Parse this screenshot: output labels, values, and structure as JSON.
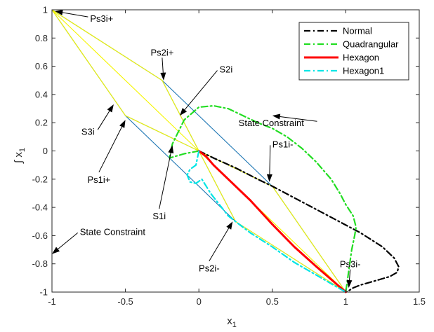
{
  "chart_data": {
    "type": "line",
    "title": "",
    "xlabel": "x",
    "xlabel_sub": "1",
    "ylabel": "∫ x",
    "ylabel_sub": "1",
    "xlim": [
      -1,
      1.5
    ],
    "ylim": [
      -1,
      1
    ],
    "xticks": [
      -1,
      -0.5,
      0,
      0.5,
      1,
      1.5
    ],
    "yticks": [
      -1,
      -0.8,
      -0.6,
      -0.4,
      -0.2,
      0,
      0.2,
      0.4,
      0.6,
      0.8,
      1
    ],
    "grid": false,
    "legend_position": "top-right",
    "colors": {
      "outer_hexagon": "#1f77b4",
      "inner_lines": "#f5f500",
      "normal": "#000000",
      "quadrangular": "#22dd22",
      "hexagon": "#ff0000",
      "hexagon1": "#00e5e5"
    },
    "series": [
      {
        "name": "Normal",
        "color": "#000000",
        "style": "dash-dot",
        "x": [
          0,
          0.1,
          0.25,
          0.4,
          0.5,
          0.7,
          0.9,
          1.1,
          1.25,
          1.33,
          1.36,
          1.35,
          1.3,
          1.2,
          1.1,
          1.05,
          1.02,
          1.0
        ],
        "y": [
          0,
          -0.05,
          -0.12,
          -0.2,
          -0.25,
          -0.36,
          -0.47,
          -0.58,
          -0.68,
          -0.76,
          -0.82,
          -0.86,
          -0.89,
          -0.92,
          -0.95,
          -0.97,
          -0.99,
          -1.0
        ]
      },
      {
        "name": "Quadrangular",
        "color": "#22dd22",
        "style": "dash-dot",
        "x": [
          0,
          -0.1,
          -0.2,
          -0.18,
          -0.1,
          0,
          0.1,
          0.2,
          0.3,
          0.4,
          0.5,
          0.6,
          0.7,
          0.8,
          0.9,
          0.96,
          1.0,
          1.05,
          1.07,
          1.06,
          1.04,
          1.02,
          1.0
        ],
        "y": [
          0,
          -0.02,
          -0.05,
          0.05,
          0.22,
          0.31,
          0.32,
          0.3,
          0.25,
          0.2,
          0.16,
          0.1,
          0.02,
          -0.08,
          -0.2,
          -0.3,
          -0.38,
          -0.46,
          -0.54,
          -0.6,
          -0.7,
          -0.85,
          -1.0
        ]
      },
      {
        "name": "Hexagon",
        "color": "#ff0000",
        "style": "solid",
        "x": [
          0,
          0.05,
          0.1,
          0.2,
          0.35,
          0.5,
          0.65,
          0.8,
          0.9,
          1.0
        ],
        "y": [
          0,
          -0.04,
          -0.1,
          -0.2,
          -0.35,
          -0.52,
          -0.68,
          -0.82,
          -0.91,
          -1.0
        ]
      },
      {
        "name": "Hexagon1",
        "color": "#00e5e5",
        "style": "dash-dot",
        "x": [
          0,
          -0.02,
          -0.06,
          -0.08,
          -0.06,
          -0.02,
          0.02,
          0.08,
          0.2,
          0.35,
          0.5,
          0.65,
          0.8,
          0.95,
          1.0
        ],
        "y": [
          0,
          -0.1,
          -0.13,
          -0.17,
          -0.22,
          -0.23,
          -0.2,
          -0.3,
          -0.46,
          -0.58,
          -0.68,
          -0.79,
          -0.88,
          -0.97,
          -1.0
        ]
      }
    ],
    "outer_polygon": {
      "x": [
        -1,
        -0.25,
        0.5,
        1,
        0.25,
        -0.5,
        -1
      ],
      "y": [
        1,
        0.5,
        -0.25,
        -1,
        -0.5,
        0.25,
        1
      ]
    },
    "inner_segments": [
      {
        "x": [
          -0.5,
          0.5
        ],
        "y": [
          0.25,
          -0.25
        ]
      },
      {
        "x": [
          -0.25,
          0.25
        ],
        "y": [
          0.5,
          -0.5
        ]
      }
    ],
    "yellow_lines": [
      {
        "x": [
          -1,
          0
        ],
        "y": [
          1,
          0
        ]
      },
      {
        "x": [
          -1,
          -0.25
        ],
        "y": [
          1,
          0.5
        ]
      },
      {
        "x": [
          -1,
          -0.5
        ],
        "y": [
          1,
          0.25
        ]
      },
      {
        "x": [
          -0.25,
          0
        ],
        "y": [
          0.5,
          0
        ]
      },
      {
        "x": [
          -0.5,
          0
        ],
        "y": [
          0.25,
          0
        ]
      },
      {
        "x": [
          0,
          1
        ],
        "y": [
          0,
          -1
        ]
      },
      {
        "x": [
          0.5,
          1
        ],
        "y": [
          -0.25,
          -1
        ]
      },
      {
        "x": [
          0.25,
          1
        ],
        "y": [
          -0.5,
          -1
        ]
      },
      {
        "x": [
          0,
          0.5
        ],
        "y": [
          0,
          -0.25
        ]
      },
      {
        "x": [
          0,
          0.25
        ],
        "y": [
          0,
          -0.5
        ]
      }
    ],
    "annotations": [
      {
        "text": "Ps3i+",
        "tx": -0.74,
        "ty": 0.94,
        "ax": -0.98,
        "ay": 0.99,
        "anchor": "start"
      },
      {
        "text": "Ps2i+",
        "tx": -0.25,
        "ty": 0.7,
        "ax": -0.24,
        "ay": 0.5,
        "anchor": "middle"
      },
      {
        "text": "S2i",
        "tx": 0.14,
        "ty": 0.58,
        "ax": -0.13,
        "ay": 0.25,
        "anchor": "start"
      },
      {
        "text": "State Constraint",
        "tx": 0.27,
        "ty": 0.2,
        "ax": 0.5,
        "ay": 0.25,
        "anchor": "start"
      },
      {
        "text": "S3i",
        "tx": -0.8,
        "ty": 0.14,
        "ax": -0.58,
        "ay": 0.33,
        "anchor": "start"
      },
      {
        "text": "Ps1i-",
        "tx": 0.5,
        "ty": 0.05,
        "ax": 0.48,
        "ay": -0.22,
        "anchor": "start"
      },
      {
        "text": "Ps1i+",
        "tx": -0.68,
        "ty": -0.2,
        "ax": -0.5,
        "ay": 0.22,
        "anchor": "middle"
      },
      {
        "text": "S1i",
        "tx": -0.27,
        "ty": -0.46,
        "ax": -0.18,
        "ay": 0.04,
        "anchor": "middle"
      },
      {
        "text": "State Constraint",
        "tx": -0.81,
        "ty": -0.57,
        "ax": -1.0,
        "ay": -0.73,
        "anchor": "start"
      },
      {
        "text": "Ps2i-",
        "tx": 0.07,
        "ty": -0.83,
        "ax": 0.23,
        "ay": -0.5,
        "anchor": "middle"
      },
      {
        "text": "Ps3i-",
        "tx": 1.03,
        "ty": -0.8,
        "ax": 1.02,
        "ay": -0.97,
        "anchor": "middle"
      }
    ]
  }
}
